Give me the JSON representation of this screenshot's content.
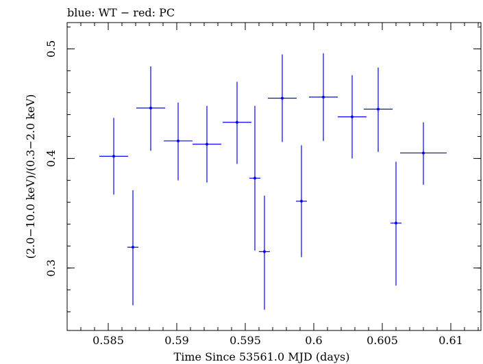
{
  "chart_data": {
    "type": "scatter",
    "title": "blue: WT − red: PC",
    "xlabel": "Time Since 53561.0 MJD (days)",
    "ylabel": "(2.0−10.0 keV)/(0.3−2.0 keV)",
    "xlim": [
      0.582,
      0.6122
    ],
    "ylim": [
      0.243,
      0.524
    ],
    "x_ticks": [
      {
        "value": 0.585,
        "label": "0.585"
      },
      {
        "value": 0.59,
        "label": "0.59"
      },
      {
        "value": 0.595,
        "label": "0.595"
      },
      {
        "value": 0.6,
        "label": "0.6"
      },
      {
        "value": 0.605,
        "label": "0.605"
      },
      {
        "value": 0.61,
        "label": "0.61"
      }
    ],
    "y_ticks": [
      {
        "value": 0.3,
        "label": "0.3"
      },
      {
        "value": 0.4,
        "label": "0.4"
      },
      {
        "value": 0.5,
        "label": "0.5"
      }
    ],
    "grid": false,
    "series": [
      {
        "color": "#0000ff",
        "points": [
          {
            "x": 0.5854,
            "y": 0.402,
            "xerr": 0.00105,
            "yerr_low": 0.035,
            "yerr_high": 0.035
          },
          {
            "x": 0.5868,
            "y": 0.319,
            "xerr": 0.0004,
            "yerr_low": 0.053,
            "yerr_high": 0.052
          },
          {
            "x": 0.5881,
            "y": 0.446,
            "xerr": 0.00105,
            "yerr_low": 0.039,
            "yerr_high": 0.038
          },
          {
            "x": 0.5901,
            "y": 0.416,
            "xerr": 0.00105,
            "yerr_low": 0.036,
            "yerr_high": 0.035
          },
          {
            "x": 0.5922,
            "y": 0.413,
            "xerr": 0.00105,
            "yerr_low": 0.035,
            "yerr_high": 0.035
          },
          {
            "x": 0.5944,
            "y": 0.433,
            "xerr": 0.00105,
            "yerr_low": 0.038,
            "yerr_high": 0.037
          },
          {
            "x": 0.5957,
            "y": 0.382,
            "xerr": 0.0004,
            "yerr_low": 0.066,
            "yerr_high": 0.066
          },
          {
            "x": 0.5964,
            "y": 0.315,
            "xerr": 0.0004,
            "yerr_low": 0.053,
            "yerr_high": 0.051
          },
          {
            "x": 0.5977,
            "y": 0.455,
            "xerr": 0.00105,
            "yerr_low": 0.04,
            "yerr_high": 0.04
          },
          {
            "x": 0.5991,
            "y": 0.361,
            "xerr": 0.0004,
            "yerr_low": 0.051,
            "yerr_high": 0.051
          },
          {
            "x": 0.6007,
            "y": 0.456,
            "xerr": 0.00105,
            "yerr_low": 0.04,
            "yerr_high": 0.04
          },
          {
            "x": 0.6028,
            "y": 0.438,
            "xerr": 0.00105,
            "yerr_low": 0.038,
            "yerr_high": 0.038
          },
          {
            "x": 0.6047,
            "y": 0.445,
            "xerr": 0.00105,
            "yerr_low": 0.039,
            "yerr_high": 0.038
          },
          {
            "x": 0.606,
            "y": 0.341,
            "xerr": 0.0004,
            "yerr_low": 0.057,
            "yerr_high": 0.056
          },
          {
            "x": 0.608,
            "y": 0.405,
            "xerr": 0.0017,
            "yerr_low": 0.029,
            "yerr_high": 0.028
          }
        ]
      }
    ]
  }
}
